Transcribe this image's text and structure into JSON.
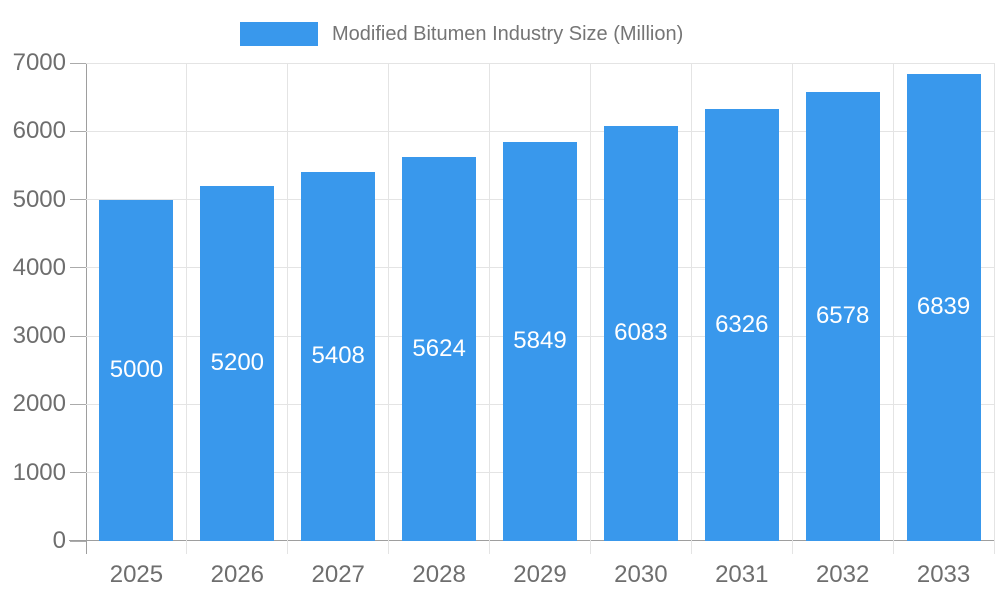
{
  "chart_data": {
    "type": "bar",
    "title": "Modified Bitumen Industry Size (Million)",
    "legend_label": "Modified Bitumen Industry Size (Million)",
    "legend_position": "top",
    "categories": [
      "2025",
      "2026",
      "2027",
      "2028",
      "2029",
      "2030",
      "2031",
      "2032",
      "2033"
    ],
    "values": [
      5000,
      5200,
      5408,
      5624,
      5849,
      6083,
      6326,
      6578,
      6839
    ],
    "xlabel": "",
    "ylabel": "",
    "ylim": [
      0,
      7000
    ],
    "ytick_interval": 1000,
    "ytick_labels": [
      "0",
      "1000",
      "2000",
      "3000",
      "4000",
      "5000",
      "6000",
      "7000"
    ],
    "grid": true,
    "value_labels_shown": true
  },
  "colors": {
    "bar": "#3998ec",
    "gridline": "#e4e4e4",
    "axis_line": "#9e9e9e",
    "tick": "#ababab",
    "axis_text": "#6e6e6e",
    "legend_text": "#757575",
    "value_label_text": "#ffffff",
    "background": "#ffffff"
  }
}
